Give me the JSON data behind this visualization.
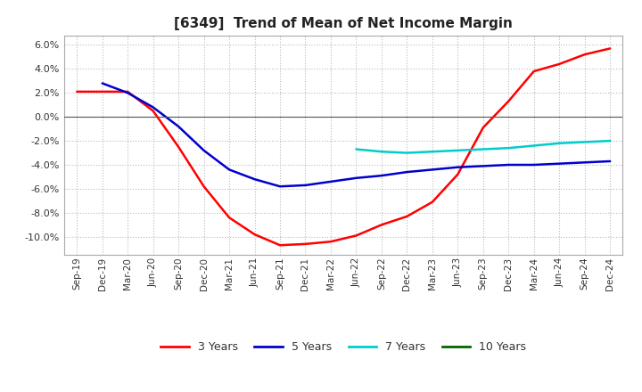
{
  "title": "[6349]  Trend of Mean of Net Income Margin",
  "ylim": [
    -0.115,
    0.068
  ],
  "yticks": [
    -0.1,
    -0.08,
    -0.06,
    -0.04,
    -0.02,
    0.0,
    0.02,
    0.04,
    0.06
  ],
  "background_color": "#ffffff",
  "grid_color": "#bbbbbb",
  "x_labels": [
    "Sep-19",
    "Dec-19",
    "Mar-20",
    "Jun-20",
    "Sep-20",
    "Dec-20",
    "Mar-21",
    "Jun-21",
    "Sep-21",
    "Dec-21",
    "Mar-22",
    "Jun-22",
    "Sep-22",
    "Dec-22",
    "Mar-23",
    "Jun-23",
    "Sep-23",
    "Dec-23",
    "Mar-24",
    "Jun-24",
    "Sep-24",
    "Dec-24"
  ],
  "series": {
    "3 Years": {
      "color": "#ff0000",
      "values": [
        0.021,
        0.021,
        0.021,
        0.005,
        -0.025,
        -0.058,
        -0.084,
        -0.098,
        -0.107,
        -0.106,
        -0.104,
        -0.099,
        -0.09,
        -0.083,
        -0.071,
        -0.048,
        -0.009,
        0.013,
        0.038,
        0.044,
        0.052,
        0.057
      ]
    },
    "5 Years": {
      "color": "#0000cc",
      "values": [
        null,
        0.028,
        0.02,
        0.008,
        -0.008,
        -0.028,
        -0.044,
        -0.052,
        -0.058,
        -0.057,
        -0.054,
        -0.051,
        -0.049,
        -0.046,
        -0.044,
        -0.042,
        -0.041,
        -0.04,
        -0.04,
        -0.039,
        -0.038,
        -0.037
      ]
    },
    "7 Years": {
      "color": "#00cccc",
      "values": [
        null,
        null,
        null,
        null,
        null,
        null,
        null,
        null,
        null,
        null,
        null,
        -0.027,
        -0.029,
        -0.03,
        -0.029,
        -0.028,
        -0.027,
        -0.026,
        -0.024,
        -0.022,
        -0.021,
        -0.02
      ]
    },
    "10 Years": {
      "color": "#006600",
      "values": [
        null,
        null,
        null,
        null,
        null,
        null,
        null,
        null,
        null,
        null,
        null,
        null,
        null,
        null,
        null,
        null,
        null,
        null,
        null,
        null,
        null,
        null
      ]
    }
  },
  "legend_labels": [
    "3 Years",
    "5 Years",
    "7 Years",
    "10 Years"
  ],
  "legend_colors": [
    "#ff0000",
    "#0000cc",
    "#00cccc",
    "#006600"
  ]
}
